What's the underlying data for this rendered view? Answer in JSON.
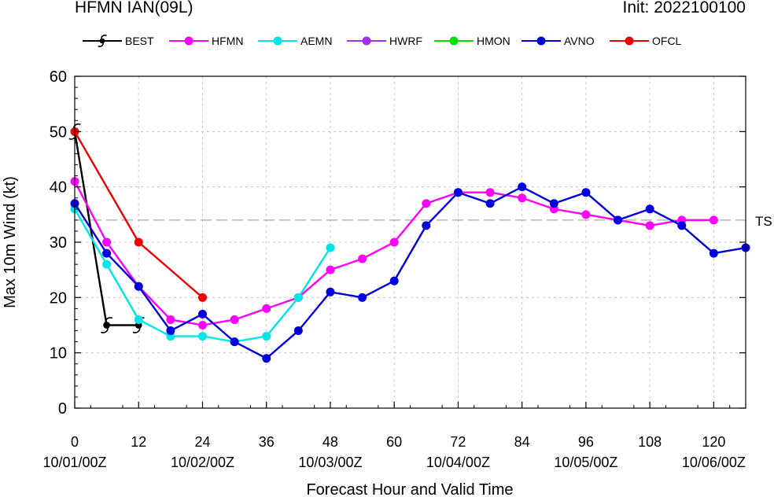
{
  "header": {
    "title": "HFMN IAN(09L)",
    "init": "Init: 2022100100"
  },
  "chart_data": {
    "type": "line",
    "title": "HFMN IAN(09L)",
    "xlabel": "Forecast Hour and Valid Time",
    "ylabel": "Max 10m Wind (kt)",
    "xlim": [
      0,
      126
    ],
    "ylim": [
      0,
      60
    ],
    "x_ticks": [
      0,
      12,
      24,
      36,
      48,
      60,
      72,
      84,
      96,
      108,
      120
    ],
    "y_ticks": [
      0,
      10,
      20,
      30,
      40,
      50,
      60
    ],
    "valid_time_labels": [
      {
        "x": 0,
        "label": "10/01/00Z"
      },
      {
        "x": 24,
        "label": "10/02/00Z"
      },
      {
        "x": 48,
        "label": "10/03/00Z"
      },
      {
        "x": 72,
        "label": "10/04/00Z"
      },
      {
        "x": 96,
        "label": "10/05/00Z"
      },
      {
        "x": 120,
        "label": "10/06/00Z"
      }
    ],
    "grid": true,
    "legend_position": "top",
    "reference_lines": [
      {
        "y": 34,
        "label": "TS"
      }
    ],
    "series": [
      {
        "name": "BEST",
        "color": "#000000",
        "marker": "hurricane-symbol",
        "points": [
          [
            0,
            50
          ],
          [
            6,
            15
          ],
          [
            12,
            15
          ]
        ]
      },
      {
        "name": "HFMN",
        "color": "#ff00ff",
        "marker": "circle",
        "points": [
          [
            0,
            41
          ],
          [
            6,
            30
          ],
          [
            12,
            22
          ],
          [
            18,
            16
          ],
          [
            24,
            15
          ],
          [
            30,
            16
          ],
          [
            36,
            18
          ],
          [
            42,
            20
          ],
          [
            48,
            25
          ],
          [
            54,
            27
          ],
          [
            60,
            30
          ],
          [
            66,
            37
          ],
          [
            72,
            39
          ],
          [
            78,
            39
          ],
          [
            84,
            38
          ],
          [
            90,
            36
          ],
          [
            96,
            35
          ],
          [
            102,
            34
          ],
          [
            108,
            33
          ],
          [
            114,
            34
          ],
          [
            120,
            34
          ]
        ]
      },
      {
        "name": "AEMN",
        "color": "#00e5e5",
        "marker": "circle",
        "points": [
          [
            0,
            36
          ],
          [
            6,
            26
          ],
          [
            12,
            16
          ],
          [
            18,
            13
          ],
          [
            24,
            13
          ],
          [
            30,
            12
          ],
          [
            36,
            13
          ],
          [
            42,
            20
          ],
          [
            48,
            29
          ]
        ]
      },
      {
        "name": "HWRF",
        "color": "#a030e8",
        "marker": "circle",
        "points": []
      },
      {
        "name": "HMON",
        "color": "#00dd00",
        "marker": "circle",
        "points": []
      },
      {
        "name": "AVNO",
        "color": "#0000dd",
        "marker": "circle",
        "points": [
          [
            0,
            37
          ],
          [
            6,
            28
          ],
          [
            12,
            22
          ],
          [
            18,
            14
          ],
          [
            24,
            17
          ],
          [
            30,
            12
          ],
          [
            36,
            9
          ],
          [
            42,
            14
          ],
          [
            48,
            21
          ],
          [
            54,
            20
          ],
          [
            60,
            23
          ],
          [
            66,
            33
          ],
          [
            72,
            39
          ],
          [
            78,
            37
          ],
          [
            84,
            40
          ],
          [
            90,
            37
          ],
          [
            96,
            39
          ],
          [
            102,
            34
          ],
          [
            108,
            36
          ],
          [
            114,
            33
          ],
          [
            120,
            28
          ],
          [
            126,
            29
          ]
        ]
      },
      {
        "name": "OFCL",
        "color": "#ee0000",
        "marker": "circle",
        "points": [
          [
            0,
            50
          ],
          [
            12,
            30
          ],
          [
            24,
            20
          ]
        ]
      }
    ]
  }
}
